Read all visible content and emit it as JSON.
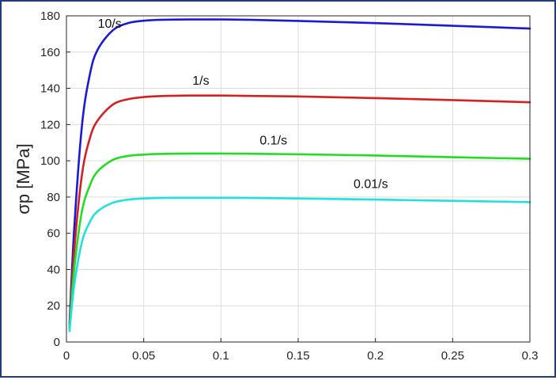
{
  "chart_data": {
    "type": "line",
    "title": "",
    "xlabel": "",
    "ylabel": "σp [MPa]",
    "xlim": [
      0,
      0.3
    ],
    "ylim": [
      0,
      180
    ],
    "xticks": [
      0,
      0.05,
      0.1,
      0.15,
      0.2,
      0.25,
      0.3
    ],
    "xtick_labels": [
      "0",
      "0.05",
      "0.1",
      "0.15",
      "0.2",
      "0.25",
      "0.3"
    ],
    "yticks": [
      0,
      20,
      40,
      60,
      80,
      100,
      120,
      140,
      160,
      180
    ],
    "ytick_labels": [
      "0",
      "20",
      "40",
      "60",
      "80",
      "100",
      "120",
      "140",
      "160",
      "180"
    ],
    "grid": true,
    "legend": "none",
    "x": [
      0.002,
      0.005,
      0.01,
      0.015,
      0.02,
      0.03,
      0.04,
      0.05,
      0.06,
      0.08,
      0.1,
      0.12,
      0.15,
      0.2,
      0.25,
      0.3
    ],
    "series": [
      {
        "name": "10/s",
        "color": "#1a1ad6",
        "values": [
          10,
          62,
          119,
          147,
          161,
          172,
          176,
          177.3,
          177.8,
          178,
          178,
          177.8,
          177.2,
          176,
          174.5,
          173
        ]
      },
      {
        "name": "1/s",
        "color": "#d42020",
        "values": [
          8,
          50,
          92,
          112,
          122,
          131,
          134,
          135.2,
          135.7,
          136,
          136,
          135.8,
          135.5,
          134.6,
          133.5,
          132.3
        ]
      },
      {
        "name": "0.1/s",
        "color": "#22dd22",
        "values": [
          7,
          40,
          72,
          86,
          94,
          100.5,
          102.7,
          103.4,
          103.8,
          104,
          104,
          103.9,
          103.6,
          102.9,
          102,
          101.1
        ]
      },
      {
        "name": "0.01/s",
        "color": "#22e0e0",
        "values": [
          6,
          31,
          55,
          66,
          72,
          76.8,
          78.6,
          79.2,
          79.5,
          79.6,
          79.6,
          79.5,
          79.2,
          78.6,
          77.9,
          77.2
        ]
      }
    ],
    "annotations": [
      {
        "text": "10/s",
        "x": 0.028,
        "y": 173.5,
        "series": 0
      },
      {
        "text": "1/s",
        "x": 0.087,
        "y": 142,
        "series": 1
      },
      {
        "text": "0.1/s",
        "x": 0.134,
        "y": 109,
        "series": 2
      },
      {
        "text": "0.01/s",
        "x": 0.197,
        "y": 85,
        "series": 3
      }
    ],
    "colors": {
      "frame": "#1f3d7a",
      "grid": "#dcdcdc",
      "axis": "#262626"
    }
  }
}
